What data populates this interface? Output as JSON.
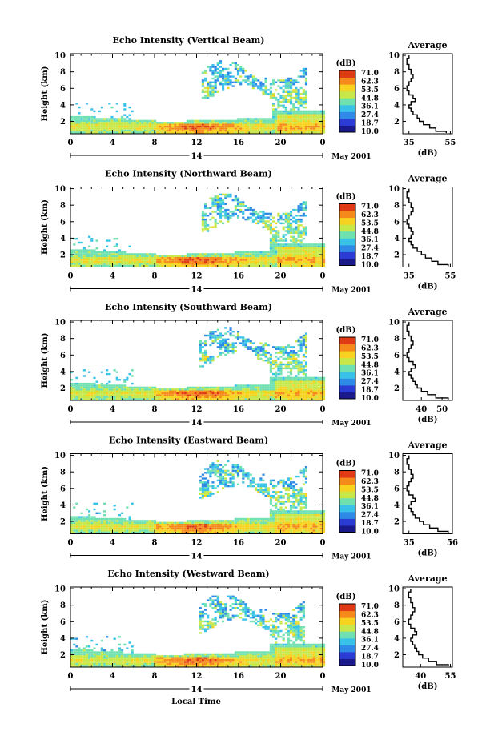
{
  "figure": {
    "x_axis_label": "Local Time"
  },
  "colorbar": {
    "unit": "(dB)",
    "levels": [
      "71.0",
      "62.3",
      "53.5",
      "44.8",
      "36.1",
      "27.4",
      "18.7",
      "10.0"
    ],
    "colors": [
      "#1a1a8c",
      "#2a3cd4",
      "#2e8ae6",
      "#39c2e8",
      "#6fe0b0",
      "#c8e84a",
      "#f7d21e",
      "#f58a1a",
      "#e03a14"
    ]
  },
  "chart_data": [
    {
      "type": "heatmap",
      "title": "Echo Intensity (Vertical Beam)",
      "ylabel": "Height (km)",
      "xlim": [
        0,
        24
      ],
      "ylim": [
        0.5,
        10.2
      ],
      "x_ticks": [
        "0",
        "4",
        "8",
        "12",
        "16",
        "20",
        "0"
      ],
      "y_ticks": [
        "2",
        "4",
        "6",
        "8",
        "10"
      ],
      "date_marker": "14",
      "date_label": "May 2001",
      "profile": {
        "title": "Average",
        "xlabel": "(dB)",
        "xlim": [
          32,
          56
        ],
        "x_ticks": [
          "35",
          "55"
        ],
        "y_ticks": [
          "2",
          "4",
          "6",
          "8",
          "10"
        ],
        "x": [
          53,
          48,
          45,
          42,
          40,
          39,
          37,
          36,
          35,
          36,
          38,
          37,
          35,
          34,
          35,
          36,
          37,
          36,
          35,
          34,
          35
        ],
        "y": [
          0.6,
          1.0,
          1.4,
          1.8,
          2.2,
          2.6,
          3.0,
          3.4,
          3.8,
          4.2,
          4.6,
          5.0,
          5.4,
          6.0,
          6.6,
          7.0,
          7.4,
          8.0,
          8.6,
          9.2,
          10.0
        ]
      }
    },
    {
      "type": "heatmap",
      "title": "Echo Intensity (Northward Beam)",
      "ylabel": "Height (km)",
      "xlim": [
        0,
        24
      ],
      "ylim": [
        0.5,
        10.2
      ],
      "x_ticks": [
        "0",
        "4",
        "8",
        "12",
        "16",
        "20",
        "0"
      ],
      "y_ticks": [
        "2",
        "4",
        "6",
        "8",
        "10"
      ],
      "date_marker": "14",
      "date_label": "May 2001",
      "profile": {
        "title": "Average",
        "xlabel": "(dB)",
        "xlim": [
          32,
          56
        ],
        "x_ticks": [
          "35",
          "55"
        ],
        "y_ticks": [
          "2",
          "4",
          "6",
          "8",
          "10"
        ],
        "x": [
          54,
          49,
          46,
          43,
          41,
          39,
          37,
          36,
          35,
          36,
          37,
          36,
          35,
          34,
          35,
          36,
          37,
          36,
          35,
          34,
          35
        ],
        "y": [
          0.6,
          1.0,
          1.4,
          1.8,
          2.2,
          2.6,
          3.0,
          3.4,
          3.8,
          4.2,
          4.6,
          5.0,
          5.4,
          6.0,
          6.6,
          7.0,
          7.4,
          8.0,
          8.6,
          9.2,
          10.0
        ]
      }
    },
    {
      "type": "heatmap",
      "title": "Echo Intensity (Southward Beam)",
      "ylabel": "Height (km)",
      "xlim": [
        0,
        24
      ],
      "ylim": [
        0.5,
        10.2
      ],
      "x_ticks": [
        "0",
        "4",
        "8",
        "12",
        "16",
        "20",
        "0"
      ],
      "y_ticks": [
        "2",
        "4",
        "6",
        "8",
        "10"
      ],
      "date_marker": "14",
      "date_label": "May 2001",
      "profile": {
        "title": "Average",
        "xlabel": "(dB)",
        "xlim": [
          31,
          55
        ],
        "x_ticks": [
          "40",
          "50"
        ],
        "y_ticks": [
          "2",
          "4",
          "6",
          "8",
          "10"
        ],
        "x": [
          53,
          47,
          43,
          40,
          38,
          37,
          36,
          35,
          34,
          35,
          37,
          36,
          34,
          33,
          34,
          35,
          36,
          35,
          34,
          33,
          34
        ],
        "y": [
          0.6,
          1.0,
          1.4,
          1.8,
          2.2,
          2.6,
          3.0,
          3.4,
          3.8,
          4.2,
          4.6,
          5.0,
          5.4,
          6.0,
          6.6,
          7.0,
          7.4,
          8.0,
          8.6,
          9.2,
          10.0
        ]
      }
    },
    {
      "type": "heatmap",
      "title": "Echo Intensity (Eastward Beam)",
      "ylabel": "Height (km)",
      "xlim": [
        0,
        24
      ],
      "ylim": [
        0.5,
        10.2
      ],
      "x_ticks": [
        "0",
        "4",
        "8",
        "12",
        "16",
        "20",
        "0"
      ],
      "y_ticks": [
        "2",
        "4",
        "6",
        "8",
        "10"
      ],
      "date_marker": "14",
      "date_label": "May 2001",
      "profile": {
        "title": "Average",
        "xlabel": "(dB)",
        "xlim": [
          32,
          56
        ],
        "x_ticks": [
          "35",
          "56"
        ],
        "y_ticks": [
          "2",
          "4",
          "6",
          "8",
          "10"
        ],
        "x": [
          54,
          49,
          45,
          42,
          40,
          38,
          37,
          36,
          35,
          36,
          38,
          37,
          35,
          34,
          35,
          36,
          37,
          36,
          35,
          34,
          35
        ],
        "y": [
          0.6,
          1.0,
          1.4,
          1.8,
          2.2,
          2.6,
          3.0,
          3.4,
          3.8,
          4.2,
          4.6,
          5.0,
          5.4,
          6.0,
          6.6,
          7.0,
          7.4,
          8.0,
          8.6,
          9.2,
          10.0
        ]
      }
    },
    {
      "type": "heatmap",
      "title": "Echo Intensity (Westward Beam)",
      "ylabel": "Height (km)",
      "xlim": [
        0,
        24
      ],
      "ylim": [
        0.5,
        10.2
      ],
      "x_ticks": [
        "0",
        "4",
        "8",
        "12",
        "16",
        "20",
        "0"
      ],
      "y_ticks": [
        "2",
        "4",
        "6",
        "8",
        "10"
      ],
      "date_marker": "14",
      "date_label": "May 2001",
      "profile": {
        "title": "Average",
        "xlabel": "(dB)",
        "xlim": [
          31,
          56
        ],
        "x_ticks": [
          "40",
          "55"
        ],
        "y_ticks": [
          "2",
          "4",
          "6",
          "8",
          "10"
        ],
        "x": [
          54,
          48,
          44,
          41,
          39,
          38,
          37,
          36,
          35,
          36,
          38,
          37,
          35,
          34,
          35,
          36,
          37,
          36,
          35,
          34,
          35
        ],
        "y": [
          0.6,
          1.0,
          1.4,
          1.8,
          2.2,
          2.6,
          3.0,
          3.4,
          3.8,
          4.2,
          4.6,
          5.0,
          5.4,
          6.0,
          6.6,
          7.0,
          7.4,
          8.0,
          8.6,
          9.2,
          10.0
        ]
      }
    }
  ]
}
